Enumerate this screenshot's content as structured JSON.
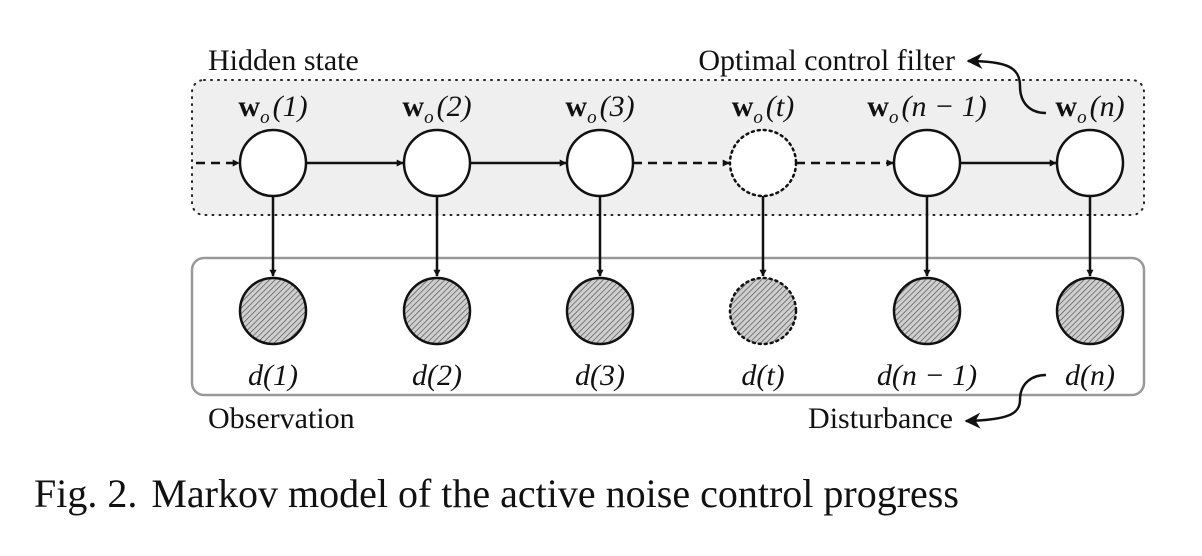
{
  "figure": {
    "caption_number": "Fig. 2.",
    "caption_text": "Markov model of the active noise control progress"
  },
  "regions": {
    "hidden_label": "Hidden state",
    "observation_label": "Observation",
    "optimal_label": "Optimal control filter",
    "disturbance_label": "Disturbance"
  },
  "hidden_nodes": [
    {
      "sym": "w",
      "sub": "o",
      "arg": "(1)",
      "style": "solid"
    },
    {
      "sym": "w",
      "sub": "o",
      "arg": "(2)",
      "style": "solid"
    },
    {
      "sym": "w",
      "sub": "o",
      "arg": "(3)",
      "style": "solid"
    },
    {
      "sym": "w",
      "sub": "o",
      "arg": "(t)",
      "style": "dotted"
    },
    {
      "sym": "w",
      "sub": "o",
      "arg": "(n − 1)",
      "style": "solid"
    },
    {
      "sym": "w",
      "sub": "o",
      "arg": "(n)",
      "style": "solid"
    }
  ],
  "observed_nodes": [
    {
      "label": "d(1)",
      "style": "solid"
    },
    {
      "label": "d(2)",
      "style": "solid"
    },
    {
      "label": "d(3)",
      "style": "solid"
    },
    {
      "label": "d(t)",
      "style": "dotted"
    },
    {
      "label": "d(n − 1)",
      "style": "solid"
    },
    {
      "label": "d(n)",
      "style": "solid"
    }
  ],
  "transitions": [
    "dashed",
    "solid",
    "solid",
    "dashed",
    "dashed",
    "solid"
  ]
}
